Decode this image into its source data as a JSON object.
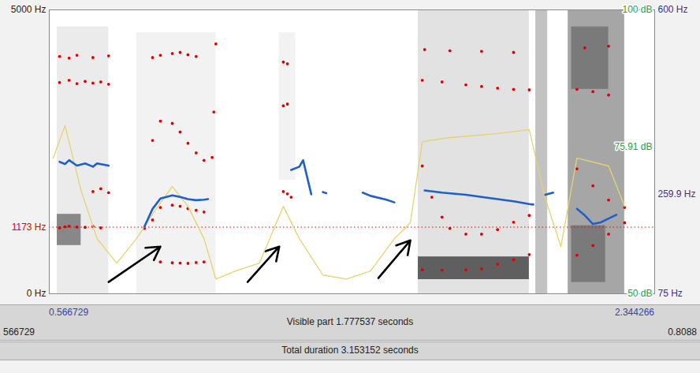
{
  "chart_data": {
    "type": "spectrogram",
    "xlim": [
      0.566729,
      2.344266
    ],
    "xticks": [
      0.566729,
      2.344266
    ],
    "ylim": [
      0,
      5000
    ],
    "yticks": [
      {
        "value": 0,
        "label": "0 Hz"
      },
      {
        "value": 1173,
        "label": "1173 Hz"
      },
      {
        "value": 5000,
        "label": "5000 Hz"
      }
    ],
    "y2lim": [
      75,
      600
    ],
    "y2ticks": [
      {
        "value": 75,
        "label": "75 Hz"
      },
      {
        "value": 259.9,
        "label": "259.9 Hz"
      },
      {
        "value": 600,
        "label": "600 Hz"
      }
    ],
    "y3lim": [
      50,
      100
    ],
    "y3ticks": [
      {
        "value": 50,
        "label": "50 dB"
      },
      {
        "value": 75.91,
        "label": "75.91 dB"
      },
      {
        "value": 100,
        "label": "100 dB"
      }
    ],
    "cursor": {
      "value": 1173,
      "color": "#e00000",
      "line_style": "dotted"
    },
    "spectrogram_cells": [
      {
        "t0": 0.59,
        "t1": 0.741,
        "f0": 0,
        "f1": 4700,
        "level": 0.15
      },
      {
        "t0": 0.59,
        "t1": 0.66,
        "f0": 850,
        "f1": 1400,
        "level": 0.55
      },
      {
        "t0": 0.823,
        "t1": 1.056,
        "f0": 0,
        "f1": 4600,
        "level": 0.1
      },
      {
        "t0": 1.242,
        "t1": 1.29,
        "f0": 2000,
        "f1": 4600,
        "level": 0.1
      },
      {
        "t0": 1.65,
        "t1": 1.976,
        "f0": 0,
        "f1": 5000,
        "level": 0.2
      },
      {
        "t0": 1.65,
        "t1": 1.976,
        "f0": 250,
        "f1": 650,
        "level": 0.7
      },
      {
        "t0": 1.995,
        "t1": 2.03,
        "f0": 0,
        "f1": 5000,
        "level": 0.35
      },
      {
        "t0": 2.09,
        "t1": 2.256,
        "f0": 0,
        "f1": 5000,
        "level": 0.45
      },
      {
        "t0": 2.1,
        "t1": 2.209,
        "f0": 3600,
        "f1": 4700,
        "level": 0.6
      },
      {
        "t0": 2.1,
        "t1": 2.2,
        "f0": 200,
        "f1": 1200,
        "level": 0.6
      }
    ],
    "series": [
      {
        "type": "scatter",
        "marker": "dot",
        "color": "#e00000",
        "x": [
          0.597,
          0.613,
          0.625,
          0.648,
          0.672,
          0.695,
          0.718,
          0.695,
          0.718,
          0.741,
          0.597,
          0.625,
          0.648,
          0.672,
          0.695,
          0.718,
          0.741,
          0.597,
          0.625,
          0.648,
          0.695,
          0.741,
          0.893,
          0.928,
          0.951,
          0.974,
          0.998,
          1.021,
          0.846,
          0.87,
          0.893,
          0.928,
          0.951,
          0.974,
          0.998,
          1.021,
          0.87,
          0.893,
          0.928,
          0.951,
          0.974,
          0.998,
          1.021,
          0.87,
          0.893,
          0.928,
          0.951,
          0.974,
          0.998,
          1.045,
          1.05,
          1.056,
          1.254,
          1.266,
          1.254,
          1.266,
          1.254,
          1.266,
          1.277,
          1.662,
          1.72,
          1.79,
          1.836,
          1.883,
          1.93,
          1.976,
          1.662,
          1.69,
          1.72,
          1.743,
          1.79,
          1.836,
          1.883,
          1.93,
          1.976,
          1.662,
          1.72,
          1.79,
          1.836,
          1.883,
          1.93,
          1.976,
          1.669,
          1.743,
          1.836,
          1.93,
          2.116,
          2.163,
          2.209,
          2.256,
          2.116,
          2.163,
          2.209,
          2.256,
          2.116,
          2.163,
          2.209,
          2.139,
          2.209
        ],
        "values": [
          1160,
          1180,
          1190,
          1175,
          1170,
          1185,
          1160,
          1800,
          1850,
          1780,
          3720,
          3760,
          3700,
          3740,
          3710,
          3730,
          3690,
          4180,
          4150,
          4200,
          4160,
          4190,
          560,
          545,
          540,
          535,
          550,
          560,
          1150,
          1300,
          1520,
          1560,
          1540,
          1500,
          1470,
          1440,
          2700,
          3040,
          3000,
          2850,
          2650,
          2480,
          2350,
          4160,
          4200,
          4230,
          4250,
          4210,
          4180,
          2400,
          3200,
          4400,
          4080,
          4050,
          3310,
          3340,
          1800,
          1760,
          1700,
          420,
          415,
          420,
          440,
          520,
          600,
          690,
          2250,
          1700,
          1350,
          1150,
          1050,
          1050,
          1130,
          1260,
          1380,
          3760,
          3730,
          3680,
          3650,
          3620,
          3600,
          3590,
          4300,
          4280,
          4270,
          4250,
          680,
          850,
          1050,
          1250,
          2200,
          1900,
          1650,
          1520,
          3600,
          3560,
          3500,
          4330,
          4360
        ]
      },
      {
        "type": "line",
        "axis": "y3",
        "color": "#e6d36a",
        "x": [
          0.578,
          0.613,
          0.66,
          0.707,
          0.765,
          0.823,
          0.87,
          0.928,
          0.974,
          1.021,
          1.056,
          1.114,
          1.184,
          1.254,
          1.301,
          1.37,
          1.44,
          1.51,
          1.58,
          1.627,
          1.662,
          1.743,
          1.883,
          1.976,
          2.023,
          2.069,
          2.116,
          2.209,
          2.256
        ],
        "values": [
          73.9,
          79.6,
          68.2,
          59.7,
          55.4,
          59.7,
          64.0,
          68.9,
          65.4,
          59.7,
          52.6,
          54.0,
          55.4,
          65.4,
          59.7,
          53.3,
          52.6,
          54.0,
          59.7,
          62.5,
          76.8,
          77.5,
          78.2,
          78.9,
          66.8,
          58.3,
          73.9,
          72.5,
          65.4
        ]
      },
      {
        "type": "line",
        "axis": "y2",
        "color": "#1f5fcc",
        "x": [
          0.597,
          0.613,
          0.625,
          0.648,
          0.672,
          0.695,
          0.707,
          0.741,
          0.765,
          0.846,
          0.87,
          0.893,
          0.928,
          0.951,
          0.974,
          0.998,
          1.021,
          1.033,
          1.056,
          1.277,
          1.301,
          1.312,
          1.336,
          1.35,
          1.37,
          1.38,
          1.39,
          1.487,
          1.51,
          1.557,
          1.58,
          1.6,
          1.669,
          1.72,
          1.79,
          1.836,
          1.883,
          1.93,
          1.976,
          1.988,
          2.0,
          2.023,
          2.046,
          2.06,
          2.116,
          2.139,
          2.163,
          2.186,
          2.209,
          2.232
        ],
        "values": [
          319,
          315,
          322,
          312,
          316,
          310,
          316,
          312,
          null,
          199,
          232,
          251,
          257,
          254,
          250,
          248,
          249,
          250,
          null,
          304,
          310,
          322,
          259,
          null,
          263,
          261,
          null,
          262,
          256,
          249,
          244,
          null,
          266,
          262,
          258,
          254,
          250,
          246,
          241,
          240,
          null,
          258,
          262,
          null,
          232,
          220,
          204,
          207,
          214,
          221
        ]
      }
    ],
    "arrows": [
      {
        "x1": 0.741,
        "y1": 207,
        "x2": 0.893,
        "y2": 830
      },
      {
        "x1": 1.149,
        "y1": 207,
        "x2": 1.242,
        "y2": 830
      },
      {
        "x1": 1.533,
        "y1": 276,
        "x2": 1.627,
        "y2": 940
      }
    ],
    "visible_part_label": "Visible part 1.777537 seconds",
    "total_duration_label": "Total duration 3.153152 seconds",
    "edge_labels": [
      "566729",
      "0.8088"
    ]
  }
}
